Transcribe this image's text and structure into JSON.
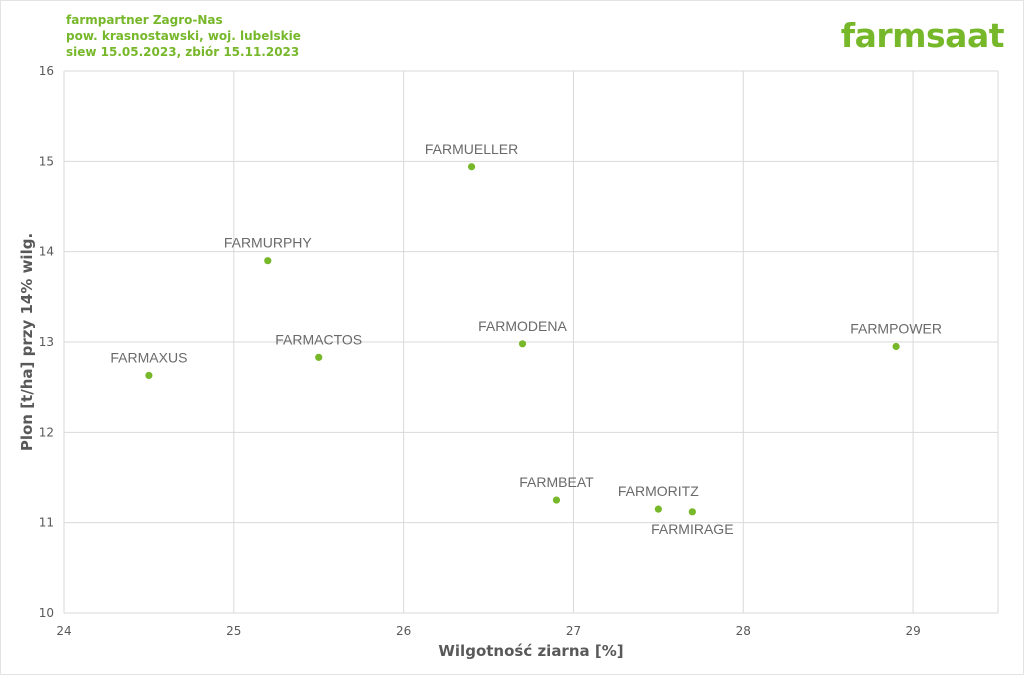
{
  "header": {
    "line1": "farmpartner Zagro-Nas",
    "line2": "pow. krasnostawski, woj. lubelskie",
    "line3": "siew 15.05.2023, zbiór 15.11.2023"
  },
  "logo": {
    "text": "farmsaat",
    "color": "#76b82a"
  },
  "chart_data": {
    "type": "scatter",
    "xlabel": "Wilgotność ziarna [%]",
    "ylabel": "Plon [t/ha] przy 14% wilg.",
    "xlim": [
      24,
      29.5
    ],
    "ylim": [
      10,
      16
    ],
    "xticks": [
      "24",
      "25",
      "26",
      "27",
      "28",
      "29"
    ],
    "yticks": [
      "10",
      "11",
      "12",
      "13",
      "14",
      "15",
      "16"
    ],
    "grid": true,
    "marker_color": "#76b82a",
    "points": [
      {
        "label": "FARMAXUS",
        "x": 24.5,
        "y": 12.63,
        "label_pos": "above"
      },
      {
        "label": "FARMURPHY",
        "x": 25.2,
        "y": 13.9,
        "label_pos": "above"
      },
      {
        "label": "FARMACTOS",
        "x": 25.5,
        "y": 12.83,
        "label_pos": "above"
      },
      {
        "label": "FARMUELLER",
        "x": 26.4,
        "y": 14.94,
        "label_pos": "above"
      },
      {
        "label": "FARMODENA",
        "x": 26.7,
        "y": 12.98,
        "label_pos": "above"
      },
      {
        "label": "FARMBEAT",
        "x": 26.9,
        "y": 11.25,
        "label_pos": "above"
      },
      {
        "label": "FARMORITZ",
        "x": 27.5,
        "y": 11.15,
        "label_pos": "above"
      },
      {
        "label": "FARMIRAGE",
        "x": 27.7,
        "y": 11.12,
        "label_pos": "below"
      },
      {
        "label": "FARMPOWER",
        "x": 28.9,
        "y": 12.95,
        "label_pos": "above"
      }
    ]
  }
}
